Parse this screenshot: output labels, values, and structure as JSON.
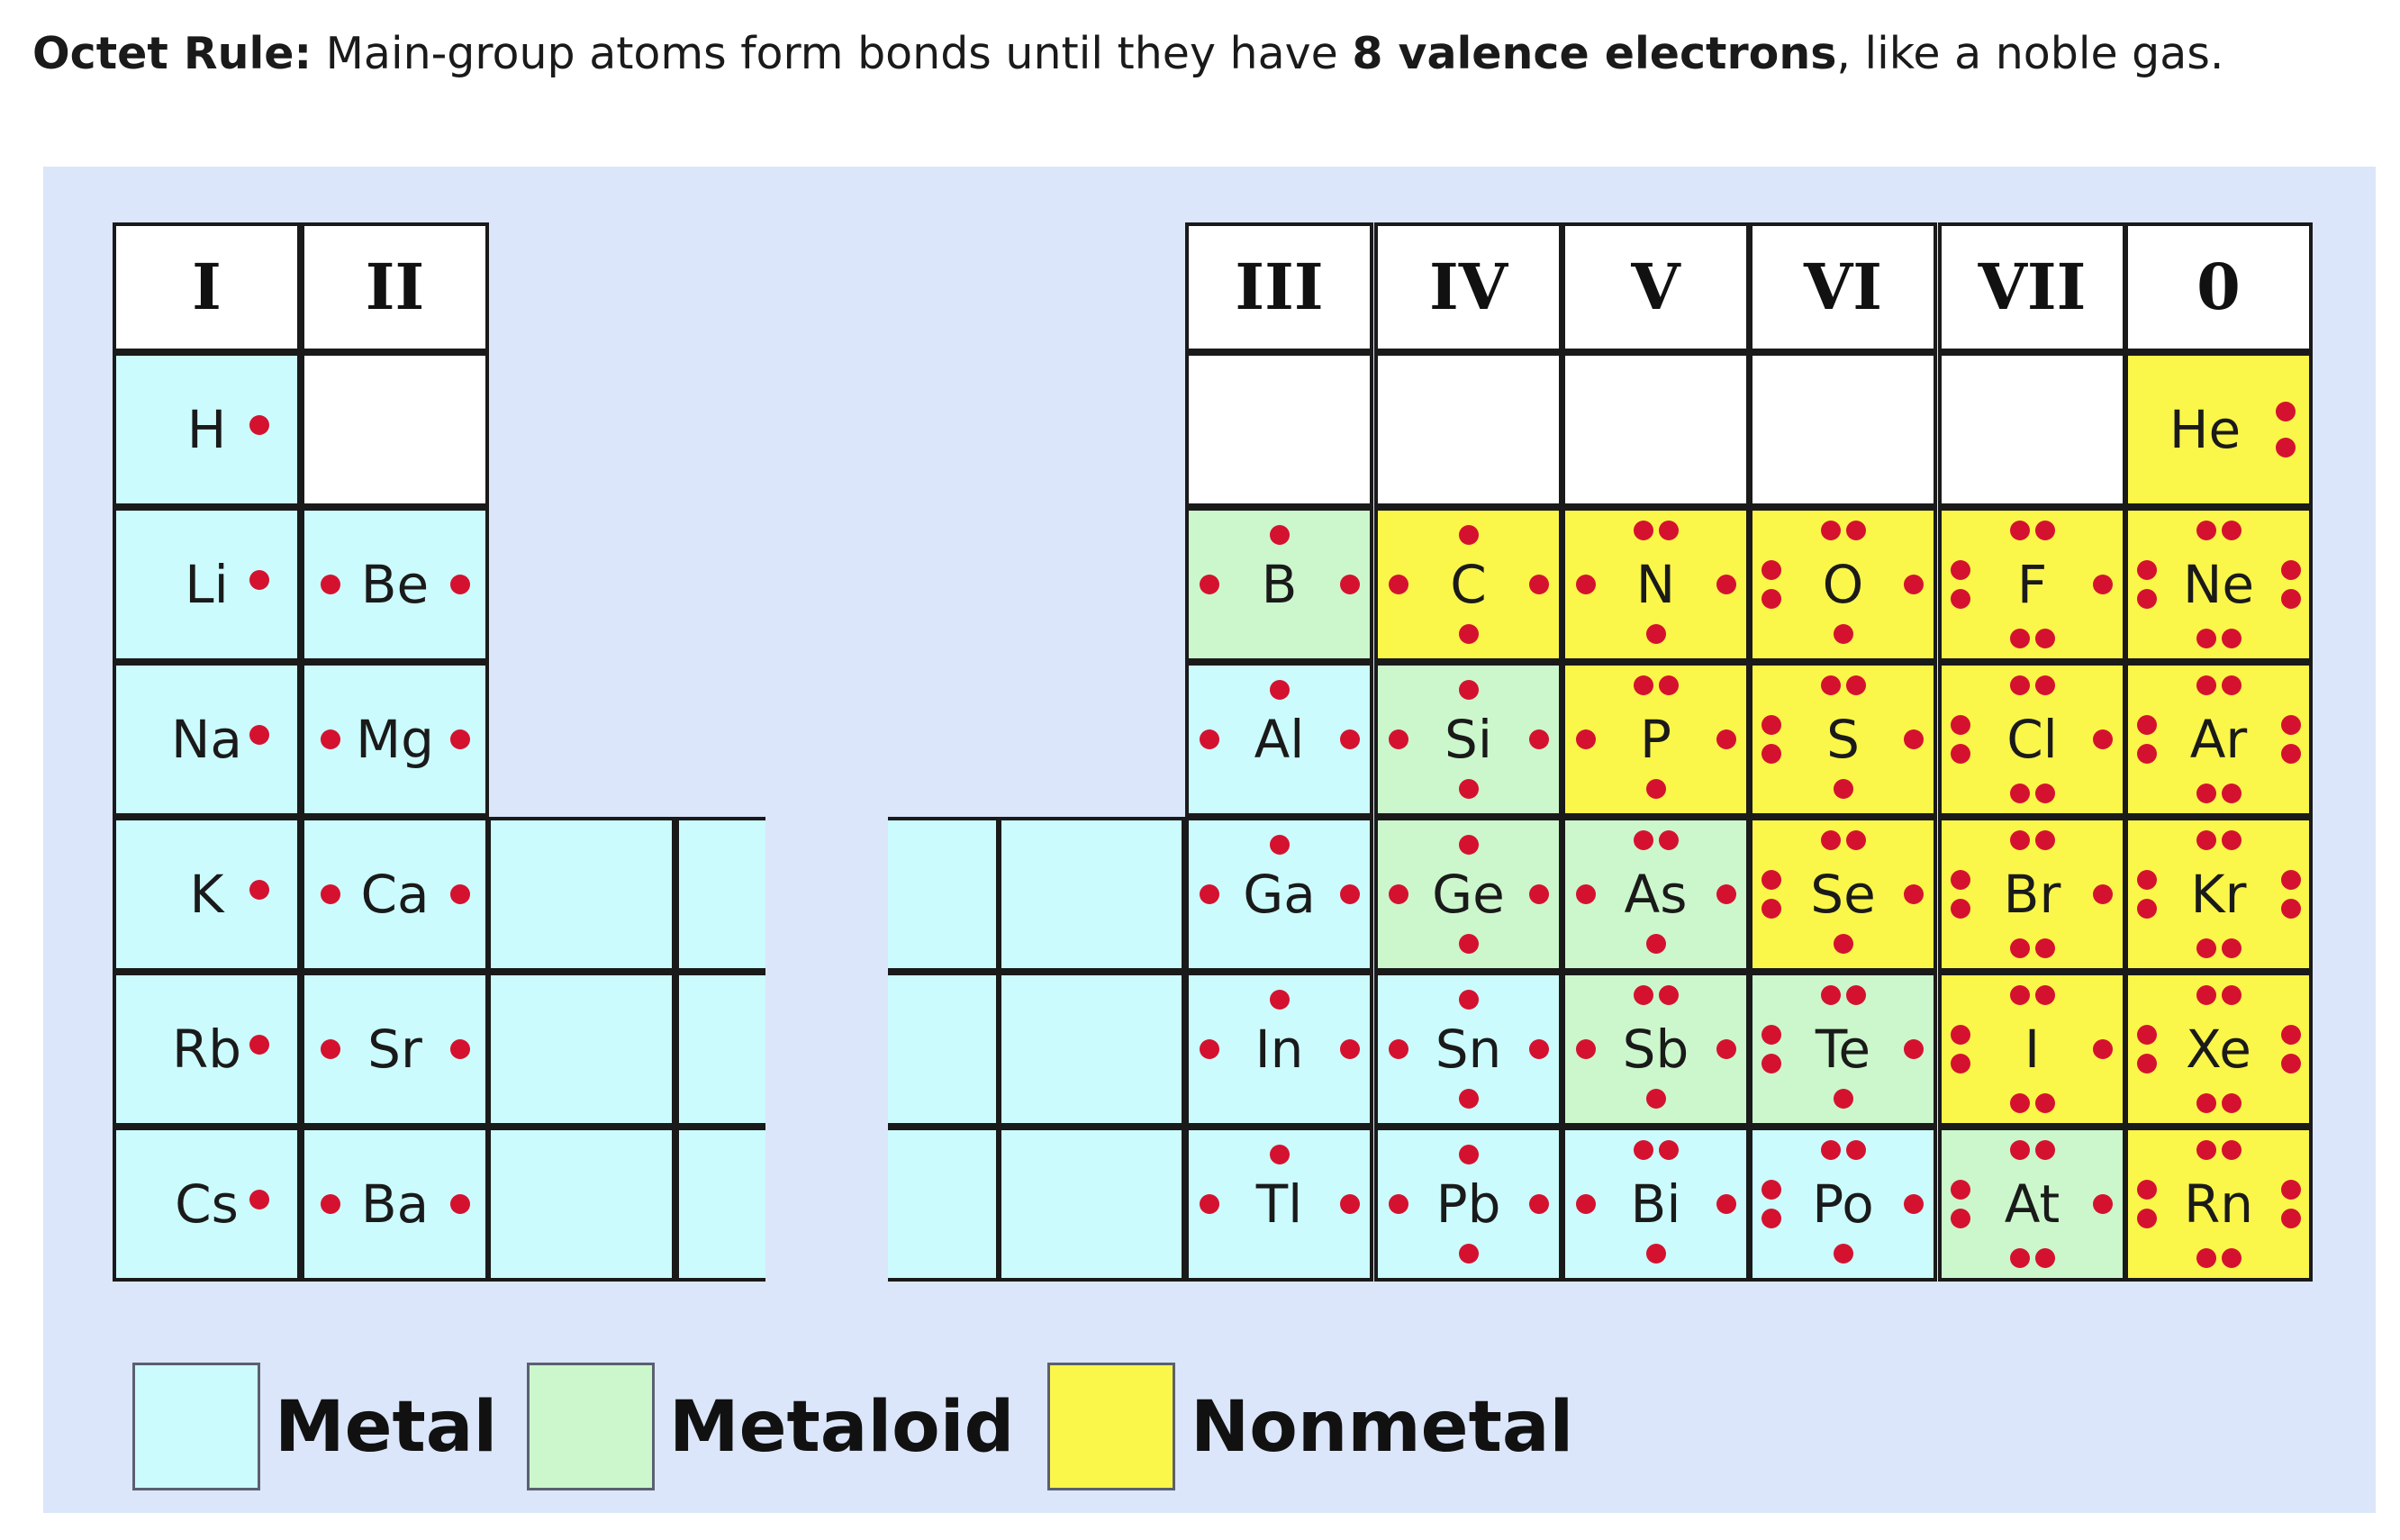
{
  "caption": {
    "lead": "Octet Rule:",
    "text1": " Main-group atoms form bonds until they have ",
    "bold": "8 valence electrons",
    "text2": ", like a noble gas."
  },
  "colors": {
    "metal": "#ccfbfd",
    "metaloid": "#ccf7cc",
    "nonmetal": "#fbf64a",
    "electron_dot": "#d4122f",
    "panel": "#dbe6fa"
  },
  "groups": [
    "I",
    "II",
    "III",
    "IV",
    "V",
    "VI",
    "VII",
    "0"
  ],
  "elements": [
    {
      "symbol": "H",
      "group": "I",
      "period": 1,
      "electrons": 1,
      "category": "metal"
    },
    {
      "symbol": "He",
      "group": "0",
      "period": 1,
      "electrons": 2,
      "category": "nonmetal"
    },
    {
      "symbol": "Li",
      "group": "I",
      "period": 2,
      "electrons": 1,
      "category": "metal"
    },
    {
      "symbol": "Be",
      "group": "II",
      "period": 2,
      "electrons": 2,
      "category": "metal"
    },
    {
      "symbol": "B",
      "group": "III",
      "period": 2,
      "electrons": 3,
      "category": "metaloid"
    },
    {
      "symbol": "C",
      "group": "IV",
      "period": 2,
      "electrons": 4,
      "category": "nonmetal"
    },
    {
      "symbol": "N",
      "group": "V",
      "period": 2,
      "electrons": 5,
      "category": "nonmetal"
    },
    {
      "symbol": "O",
      "group": "VI",
      "period": 2,
      "electrons": 6,
      "category": "nonmetal"
    },
    {
      "symbol": "F",
      "group": "VII",
      "period": 2,
      "electrons": 7,
      "category": "nonmetal"
    },
    {
      "symbol": "Ne",
      "group": "0",
      "period": 2,
      "electrons": 8,
      "category": "nonmetal"
    },
    {
      "symbol": "Na",
      "group": "I",
      "period": 3,
      "electrons": 1,
      "category": "metal"
    },
    {
      "symbol": "Mg",
      "group": "II",
      "period": 3,
      "electrons": 2,
      "category": "metal"
    },
    {
      "symbol": "Al",
      "group": "III",
      "period": 3,
      "electrons": 3,
      "category": "metal"
    },
    {
      "symbol": "Si",
      "group": "IV",
      "period": 3,
      "electrons": 4,
      "category": "metaloid"
    },
    {
      "symbol": "P",
      "group": "V",
      "period": 3,
      "electrons": 5,
      "category": "nonmetal"
    },
    {
      "symbol": "S",
      "group": "VI",
      "period": 3,
      "electrons": 6,
      "category": "nonmetal"
    },
    {
      "symbol": "Cl",
      "group": "VII",
      "period": 3,
      "electrons": 7,
      "category": "nonmetal"
    },
    {
      "symbol": "Ar",
      "group": "0",
      "period": 3,
      "electrons": 8,
      "category": "nonmetal"
    },
    {
      "symbol": "K",
      "group": "I",
      "period": 4,
      "electrons": 1,
      "category": "metal"
    },
    {
      "symbol": "Ca",
      "group": "II",
      "period": 4,
      "electrons": 2,
      "category": "metal"
    },
    {
      "symbol": "Ga",
      "group": "III",
      "period": 4,
      "electrons": 3,
      "category": "metal"
    },
    {
      "symbol": "Ge",
      "group": "IV",
      "period": 4,
      "electrons": 4,
      "category": "metaloid"
    },
    {
      "symbol": "As",
      "group": "V",
      "period": 4,
      "electrons": 5,
      "category": "metaloid"
    },
    {
      "symbol": "Se",
      "group": "VI",
      "period": 4,
      "electrons": 6,
      "category": "nonmetal"
    },
    {
      "symbol": "Br",
      "group": "VII",
      "period": 4,
      "electrons": 7,
      "category": "nonmetal"
    },
    {
      "symbol": "Kr",
      "group": "0",
      "period": 4,
      "electrons": 8,
      "category": "nonmetal"
    },
    {
      "symbol": "Rb",
      "group": "I",
      "period": 5,
      "electrons": 1,
      "category": "metal"
    },
    {
      "symbol": "Sr",
      "group": "II",
      "period": 5,
      "electrons": 2,
      "category": "metal"
    },
    {
      "symbol": "In",
      "group": "III",
      "period": 5,
      "electrons": 3,
      "category": "metal"
    },
    {
      "symbol": "Sn",
      "group": "IV",
      "period": 5,
      "electrons": 4,
      "category": "metal"
    },
    {
      "symbol": "Sb",
      "group": "V",
      "period": 5,
      "electrons": 5,
      "category": "metaloid"
    },
    {
      "symbol": "Te",
      "group": "VI",
      "period": 5,
      "electrons": 6,
      "category": "metaloid"
    },
    {
      "symbol": "I",
      "group": "VII",
      "period": 5,
      "electrons": 7,
      "category": "nonmetal"
    },
    {
      "symbol": "Xe",
      "group": "0",
      "period": 5,
      "electrons": 8,
      "category": "nonmetal"
    },
    {
      "symbol": "Cs",
      "group": "I",
      "period": 6,
      "electrons": 1,
      "category": "metal"
    },
    {
      "symbol": "Ba",
      "group": "II",
      "period": 6,
      "electrons": 2,
      "category": "metal"
    },
    {
      "symbol": "Tl",
      "group": "III",
      "period": 6,
      "electrons": 3,
      "category": "metal"
    },
    {
      "symbol": "Pb",
      "group": "IV",
      "period": 6,
      "electrons": 4,
      "category": "metal"
    },
    {
      "symbol": "Bi",
      "group": "V",
      "period": 6,
      "electrons": 5,
      "category": "metal"
    },
    {
      "symbol": "Po",
      "group": "VI",
      "period": 6,
      "electrons": 6,
      "category": "metal"
    },
    {
      "symbol": "At",
      "group": "VII",
      "period": 6,
      "electrons": 7,
      "category": "metaloid"
    },
    {
      "symbol": "Rn",
      "group": "0",
      "period": 6,
      "electrons": 8,
      "category": "nonmetal"
    }
  ],
  "legend": [
    {
      "label": "Metal",
      "category": "metal"
    },
    {
      "label": "Metaloid",
      "category": "metaloid"
    },
    {
      "label": "Nonmetal",
      "category": "nonmetal"
    }
  ]
}
